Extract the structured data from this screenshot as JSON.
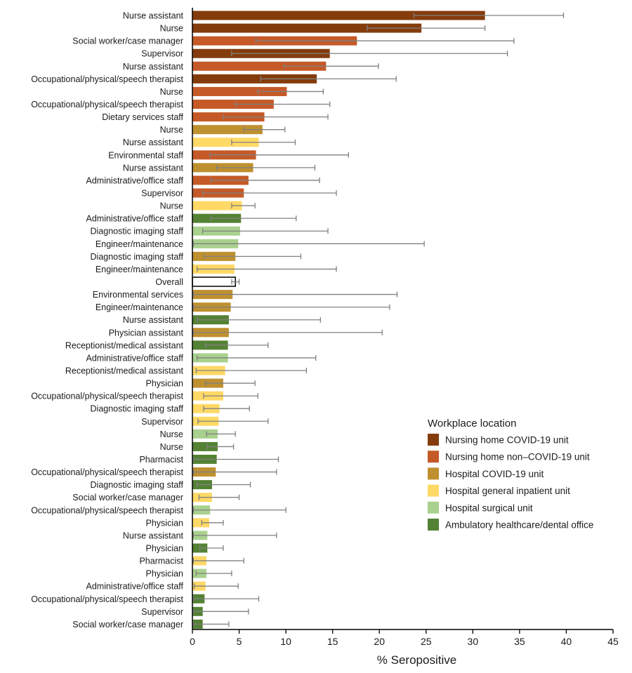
{
  "chart_data": {
    "type": "bar",
    "orientation": "horizontal",
    "title": "",
    "xlabel": "% Seropositive",
    "ylabel": "",
    "xlim": [
      0,
      45
    ],
    "xticks": [
      0,
      5,
      10,
      15,
      20,
      25,
      30,
      35,
      40,
      45
    ],
    "grid": false,
    "error_bars": true,
    "legend": {
      "title": "Workplace location",
      "position": "right",
      "entries": [
        {
          "key": "nh_covid",
          "label": "Nursing home COVID-19 unit",
          "color": "#843C0C"
        },
        {
          "key": "nh_non",
          "label": "Nursing home non–COVID-19 unit",
          "color": "#C55A28"
        },
        {
          "key": "hosp_covid",
          "label": "Hospital COVID-19 unit",
          "color": "#BF9030"
        },
        {
          "key": "hosp_gen",
          "label": "Hospital general inpatient unit",
          "color": "#FFD966"
        },
        {
          "key": "hosp_surg",
          "label": "Hospital surgical unit",
          "color": "#A9D18E"
        },
        {
          "key": "ambulatory",
          "label": "Ambulatory healthcare/dental office",
          "color": "#548235"
        }
      ]
    },
    "bars": [
      {
        "label": "Nurse assistant",
        "group": "nh_covid",
        "value": 31.3,
        "ci": [
          23.7,
          39.7
        ]
      },
      {
        "label": "Nurse",
        "group": "nh_covid",
        "value": 24.5,
        "ci": [
          18.7,
          31.3
        ]
      },
      {
        "label": "Social worker/case manager",
        "group": "nh_non",
        "value": 17.6,
        "ci": [
          6.8,
          34.4
        ]
      },
      {
        "label": "Supervisor",
        "group": "nh_covid",
        "value": 14.7,
        "ci": [
          4.2,
          33.7
        ]
      },
      {
        "label": "Nurse assistant",
        "group": "nh_non",
        "value": 14.3,
        "ci": [
          9.8,
          19.9
        ]
      },
      {
        "label": "Occupational/physical/speech therapist",
        "group": "nh_covid",
        "value": 13.3,
        "ci": [
          7.3,
          21.8
        ]
      },
      {
        "label": "Nurse",
        "group": "nh_non",
        "value": 10.1,
        "ci": [
          7.0,
          14.0
        ]
      },
      {
        "label": "Occupational/physical/speech therapist",
        "group": "nh_non",
        "value": 8.7,
        "ci": [
          4.6,
          14.7
        ]
      },
      {
        "label": "Dietary services staff",
        "group": "nh_non",
        "value": 7.7,
        "ci": [
          3.3,
          14.5
        ]
      },
      {
        "label": "Nurse",
        "group": "hosp_covid",
        "value": 7.5,
        "ci": [
          5.5,
          9.9
        ]
      },
      {
        "label": "Nurse assistant",
        "group": "hosp_gen",
        "value": 7.1,
        "ci": [
          4.2,
          11.0
        ]
      },
      {
        "label": "Environmental staff",
        "group": "nh_non",
        "value": 6.8,
        "ci": [
          1.9,
          16.7
        ]
      },
      {
        "label": "Nurse assistant",
        "group": "hosp_covid",
        "value": 6.5,
        "ci": [
          2.6,
          13.1
        ]
      },
      {
        "label": "Administrative/office staff",
        "group": "nh_non",
        "value": 6.0,
        "ci": [
          2.0,
          13.6
        ]
      },
      {
        "label": "Supervisor",
        "group": "nh_non",
        "value": 5.5,
        "ci": [
          1.1,
          15.4
        ]
      },
      {
        "label": "Nurse",
        "group": "hosp_gen",
        "value": 5.3,
        "ci": [
          4.2,
          6.7
        ]
      },
      {
        "label": "Administrative/office staff",
        "group": "ambulatory",
        "value": 5.2,
        "ci": [
          2.0,
          11.1
        ]
      },
      {
        "label": "Diagnostic imaging staff",
        "group": "hosp_surg",
        "value": 5.1,
        "ci": [
          1.1,
          14.5
        ]
      },
      {
        "label": "Engineer/maintenance",
        "group": "hosp_surg",
        "value": 4.9,
        "ci": [
          0.1,
          24.8
        ]
      },
      {
        "label": "Diagnostic imaging staff",
        "group": "hosp_covid",
        "value": 4.6,
        "ci": [
          1.3,
          11.6
        ]
      },
      {
        "label": "Engineer/maintenance",
        "group": "hosp_gen",
        "value": 4.5,
        "ci": [
          0.5,
          15.4
        ]
      },
      {
        "label": "Overall",
        "group": "overall",
        "value": 4.6,
        "ci": [
          4.2,
          5.0
        ]
      },
      {
        "label": "Environmental services",
        "group": "hosp_covid",
        "value": 4.3,
        "ci": [
          0.1,
          21.9
        ]
      },
      {
        "label": "Engineer/maintenance",
        "group": "hosp_covid",
        "value": 4.1,
        "ci": [
          0.1,
          21.1
        ]
      },
      {
        "label": "Nurse assistant",
        "group": "ambulatory",
        "value": 3.9,
        "ci": [
          0.5,
          13.7
        ]
      },
      {
        "label": "Physician assistant",
        "group": "hosp_covid",
        "value": 3.9,
        "ci": [
          0.1,
          20.3
        ]
      },
      {
        "label": "Receptionist/medical assistant",
        "group": "ambulatory",
        "value": 3.8,
        "ci": [
          1.4,
          8.1
        ]
      },
      {
        "label": "Administrative/office staff",
        "group": "hosp_surg",
        "value": 3.8,
        "ci": [
          0.5,
          13.2
        ]
      },
      {
        "label": "Receptionist/medical assistant",
        "group": "hosp_gen",
        "value": 3.5,
        "ci": [
          0.4,
          12.2
        ]
      },
      {
        "label": "Physician",
        "group": "hosp_covid",
        "value": 3.3,
        "ci": [
          1.4,
          6.7
        ]
      },
      {
        "label": "Occupational/physical/speech therapist",
        "group": "hosp_gen",
        "value": 3.3,
        "ci": [
          1.2,
          7.0
        ]
      },
      {
        "label": "Diagnostic imaging staff",
        "group": "hosp_gen",
        "value": 2.9,
        "ci": [
          1.2,
          6.1
        ]
      },
      {
        "label": "Supervisor",
        "group": "hosp_gen",
        "value": 2.8,
        "ci": [
          0.6,
          8.1
        ]
      },
      {
        "label": "Nurse",
        "group": "hosp_surg",
        "value": 2.7,
        "ci": [
          1.5,
          4.6
        ]
      },
      {
        "label": "Nurse",
        "group": "ambulatory",
        "value": 2.7,
        "ci": [
          1.6,
          4.4
        ]
      },
      {
        "label": "Pharmacist",
        "group": "ambulatory",
        "value": 2.6,
        "ci": [
          0.1,
          9.2
        ]
      },
      {
        "label": "Occupational/physical/speech therapist",
        "group": "hosp_covid",
        "value": 2.5,
        "ci": [
          0.1,
          9.0
        ]
      },
      {
        "label": "Diagnostic imaging staff",
        "group": "ambulatory",
        "value": 2.1,
        "ci": [
          0.5,
          6.2
        ]
      },
      {
        "label": "Social worker/case manager",
        "group": "hosp_gen",
        "value": 2.1,
        "ci": [
          0.7,
          5.0
        ]
      },
      {
        "label": "Occupational/physical/speech therapist",
        "group": "hosp_surg",
        "value": 1.9,
        "ci": [
          0.1,
          10.0
        ]
      },
      {
        "label": "Physician",
        "group": "hosp_gen",
        "value": 1.8,
        "ci": [
          1.0,
          3.3
        ]
      },
      {
        "label": "Nurse assistant",
        "group": "hosp_surg",
        "value": 1.6,
        "ci": [
          0.1,
          9.0
        ]
      },
      {
        "label": "Physician",
        "group": "ambulatory",
        "value": 1.6,
        "ci": [
          0.8,
          3.3
        ]
      },
      {
        "label": "Pharmacist",
        "group": "hosp_gen",
        "value": 1.5,
        "ci": [
          0.1,
          5.5
        ]
      },
      {
        "label": "Physician",
        "group": "hosp_surg",
        "value": 1.5,
        "ci": [
          0.4,
          4.2
        ]
      },
      {
        "label": "Administrative/office staff",
        "group": "hosp_gen",
        "value": 1.4,
        "ci": [
          0.2,
          4.9
        ]
      },
      {
        "label": "Occupational/physical/speech therapist",
        "group": "ambulatory",
        "value": 1.3,
        "ci": [
          0.1,
          7.1
        ]
      },
      {
        "label": "Supervisor",
        "group": "ambulatory",
        "value": 1.1,
        "ci": [
          0.1,
          6.0
        ]
      },
      {
        "label": "Social worker/case manager",
        "group": "ambulatory",
        "value": 1.1,
        "ci": [
          0.1,
          3.9
        ]
      }
    ]
  }
}
